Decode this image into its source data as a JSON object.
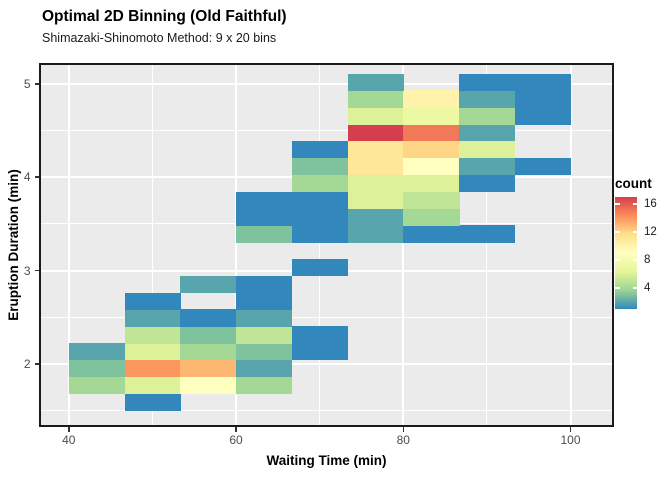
{
  "header": {
    "title": "Optimal 2D Binning (Old Faithful)",
    "subtitle": "Shimazaki-Shinomoto Method: 9 x 20 bins"
  },
  "chart_data": {
    "type": "heatmap",
    "title": "Optimal 2D Binning (Old Faithful)",
    "subtitle": "Shimazaki-Shinomoto Method: 9 x 20 bins",
    "xlabel": "Waiting Time (min)",
    "ylabel": "Eruption Duration (min)",
    "x_ticks": [
      40,
      60,
      80,
      100
    ],
    "x_minor_ticks": [
      50,
      70,
      90
    ],
    "y_ticks": [
      2,
      3,
      4,
      5
    ],
    "y_minor_ticks": [
      1.5,
      2.5,
      3.5,
      4.5
    ],
    "x_domain": [
      36.44,
      105.2
    ],
    "y_domain": [
      1.323,
      5.224
    ],
    "grid": true,
    "panel_bg": "#EBEBEB",
    "grid_color": "#FFFFFF",
    "x_bin_edges": [
      40,
      46.667,
      53.333,
      60,
      66.667,
      73.333,
      80,
      86.667,
      93.333,
      100
    ],
    "y_bin_edges": [
      1.5,
      1.6805,
      1.861,
      2.0415,
      2.222,
      2.4025,
      2.583,
      2.7635,
      2.944,
      3.1245,
      3.305,
      3.4855,
      3.666,
      3.8465,
      4.027,
      4.2075,
      4.388,
      4.5685,
      4.749,
      4.9295,
      5.11
    ],
    "bins_format": "col,row,count (col 0 = leftmost waiting-time bin, row 0 = bottom eruption-duration bin)",
    "bins": [
      [
        1,
        0,
        1
      ],
      [
        0,
        1,
        4
      ],
      [
        1,
        1,
        6
      ],
      [
        2,
        1,
        9
      ],
      [
        3,
        1,
        4
      ],
      [
        0,
        2,
        3
      ],
      [
        1,
        2,
        14
      ],
      [
        2,
        2,
        13
      ],
      [
        3,
        2,
        2
      ],
      [
        0,
        3,
        2
      ],
      [
        1,
        3,
        6
      ],
      [
        2,
        3,
        4
      ],
      [
        3,
        3,
        3
      ],
      [
        4,
        3,
        1
      ],
      [
        1,
        4,
        5
      ],
      [
        2,
        4,
        3
      ],
      [
        3,
        4,
        5
      ],
      [
        4,
        4,
        1
      ],
      [
        1,
        5,
        2
      ],
      [
        2,
        5,
        1
      ],
      [
        3,
        5,
        2
      ],
      [
        1,
        6,
        1
      ],
      [
        3,
        6,
        1
      ],
      [
        2,
        7,
        2
      ],
      [
        3,
        7,
        1
      ],
      [
        4,
        8,
        1
      ],
      [
        3,
        10,
        3
      ],
      [
        4,
        10,
        1
      ],
      [
        5,
        10,
        2
      ],
      [
        6,
        10,
        1
      ],
      [
        7,
        10,
        1
      ],
      [
        3,
        11,
        1
      ],
      [
        4,
        11,
        1
      ],
      [
        5,
        11,
        2
      ],
      [
        6,
        11,
        4
      ],
      [
        3,
        12,
        1
      ],
      [
        4,
        12,
        1
      ],
      [
        5,
        12,
        6
      ],
      [
        6,
        12,
        5
      ],
      [
        4,
        13,
        4
      ],
      [
        5,
        13,
        6
      ],
      [
        6,
        13,
        6
      ],
      [
        7,
        13,
        1
      ],
      [
        4,
        14,
        3
      ],
      [
        5,
        14,
        11
      ],
      [
        6,
        14,
        9
      ],
      [
        7,
        14,
        2
      ],
      [
        8,
        14,
        1
      ],
      [
        4,
        15,
        1
      ],
      [
        5,
        15,
        11
      ],
      [
        6,
        15,
        12
      ],
      [
        7,
        15,
        6
      ],
      [
        5,
        16,
        17
      ],
      [
        6,
        16,
        15
      ],
      [
        7,
        16,
        2
      ],
      [
        5,
        17,
        6
      ],
      [
        6,
        17,
        7
      ],
      [
        7,
        17,
        4
      ],
      [
        8,
        17,
        1
      ],
      [
        5,
        18,
        4
      ],
      [
        6,
        18,
        10
      ],
      [
        7,
        18,
        2
      ],
      [
        8,
        18,
        1
      ],
      [
        5,
        19,
        2
      ],
      [
        7,
        19,
        1
      ],
      [
        8,
        19,
        1
      ]
    ],
    "legend": {
      "title": "count",
      "ticks": [
        16,
        12,
        8,
        4
      ],
      "domain": [
        1,
        17
      ],
      "position": "right"
    },
    "color_scale": {
      "name": "spectral-reversed",
      "domain": [
        1,
        17
      ],
      "anchors": [
        "#3288BD",
        "#99D594",
        "#E6F598",
        "#FFFFBF",
        "#FEE08B",
        "#FC8D59",
        "#D53E4F"
      ]
    }
  }
}
